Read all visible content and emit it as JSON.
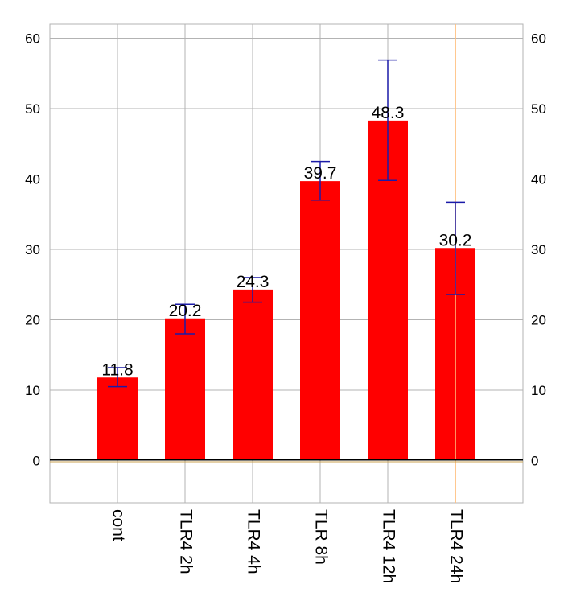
{
  "chart_data": {
    "type": "bar",
    "categories": [
      "cont",
      "TLR4 2h",
      "TLR4 4h",
      "TLR 8h",
      "TLR4 12h",
      "TLR4 24h"
    ],
    "values": [
      11.8,
      20.2,
      24.3,
      39.7,
      48.3,
      30.2
    ],
    "data_labels": [
      "11.8",
      "20.2",
      "24.3",
      "39.7",
      "48.3",
      "30.2"
    ],
    "error_bars": [
      {
        "low": 10.5,
        "high": 13.2
      },
      {
        "low": 18.0,
        "high": 22.2
      },
      {
        "low": 22.5,
        "high": 26.0
      },
      {
        "low": 37.0,
        "high": 42.5
      },
      {
        "low": 39.8,
        "high": 56.9
      },
      {
        "low": 23.6,
        "high": 36.7
      }
    ],
    "ylim": [
      -6,
      62
    ],
    "yticks": [
      0,
      10,
      20,
      30,
      40,
      50,
      60
    ],
    "ytick_labels": [
      "0",
      "10",
      "20",
      "30",
      "40",
      "50",
      "60"
    ],
    "right_axis_mirrored": true,
    "grid": true,
    "colors": {
      "bar": "#ff0000",
      "error_bar": "#1a1aa8",
      "grid": "#b3b3b3",
      "baseline": "#000000",
      "baseline_accent": "#c8a050",
      "highlight_line": "#ffc080"
    },
    "highlighted_category": "TLR4 24h"
  }
}
